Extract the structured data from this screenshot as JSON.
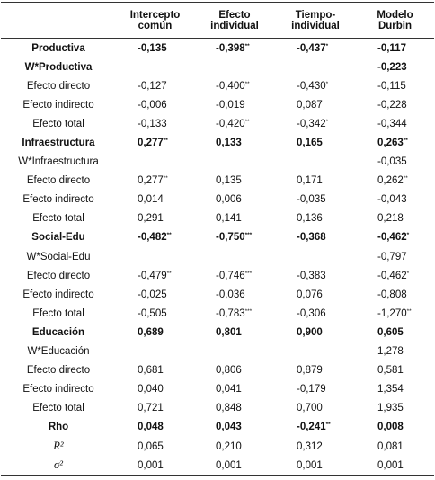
{
  "table": {
    "header": [
      [
        "Intercepto",
        "común"
      ],
      [
        "Efecto",
        "individual"
      ],
      [
        "Tiempo-",
        "individual"
      ],
      [
        "Modelo",
        "Durbin"
      ]
    ],
    "rows": [
      {
        "label": "Productiva",
        "bold": true,
        "cells": [
          "-0,135",
          {
            "text": "-0,398",
            "sup": "**"
          },
          {
            "text": "-0,437",
            "sup": "*"
          },
          "-0,117"
        ]
      },
      {
        "label": "W*Productiva",
        "bold": true,
        "cells": [
          null,
          null,
          null,
          "-0,223"
        ]
      },
      {
        "label": "Efecto directo",
        "cells": [
          "-0,127",
          {
            "text": "-0,400",
            "sup": "**"
          },
          {
            "text": "-0,430",
            "sup": "*"
          },
          "-0,115"
        ]
      },
      {
        "label": "Efecto indirecto",
        "cells": [
          "-0,006",
          "-0,019",
          "0,087",
          "-0,228"
        ]
      },
      {
        "label": "Efecto total",
        "cells": [
          "-0,133",
          {
            "text": "-0,420",
            "sup": "**"
          },
          {
            "text": "-0,342",
            "sup": "*"
          },
          "-0,344"
        ]
      },
      {
        "label": "Infraestructura",
        "bold": true,
        "cells": [
          {
            "text": "0,277",
            "sup": "**"
          },
          "0,133",
          "0,165",
          {
            "text": "0,263",
            "sup": "**"
          }
        ]
      },
      {
        "label": "W*Infraestructura",
        "cells": [
          null,
          null,
          null,
          "-0,035"
        ]
      },
      {
        "label": "Efecto directo",
        "cells": [
          {
            "text": "0,277",
            "sup": "**"
          },
          "0,135",
          "0,171",
          {
            "text": "0,262",
            "sup": "**"
          }
        ]
      },
      {
        "label": "Efecto indirecto",
        "cells": [
          "0,014",
          "0,006",
          "-0,035",
          "-0,043"
        ]
      },
      {
        "label": "Efecto total",
        "cells": [
          "0,291",
          "0,141",
          "0,136",
          "0,218"
        ]
      },
      {
        "label": "Social-Edu",
        "bold": true,
        "cells": [
          {
            "text": "-0,482",
            "sup": "**"
          },
          {
            "text": "-0,750",
            "sup": "***"
          },
          "-0,368",
          {
            "text": "-0,462",
            "sup": "*"
          }
        ]
      },
      {
        "label": "W*Social-Edu",
        "cells": [
          null,
          null,
          null,
          "-0,797"
        ]
      },
      {
        "label": "Efecto directo",
        "cells": [
          {
            "text": "-0,479",
            "sup": "**"
          },
          {
            "text": "-0,746",
            "sup": "***"
          },
          "-0,383",
          {
            "text": "-0,462",
            "sup": "*"
          }
        ]
      },
      {
        "label": "Efecto indirecto",
        "cells": [
          "-0,025",
          "-0,036",
          "0,076",
          "-0,808"
        ]
      },
      {
        "label": "Efecto total",
        "cells": [
          "-0,505",
          {
            "text": "-0,783",
            "sup": "***"
          },
          "-0,306",
          {
            "text": "-1,270",
            "sup": "**"
          }
        ]
      },
      {
        "label": "Educación",
        "bold": true,
        "cells": [
          "0,689",
          "0,801",
          "0,900",
          "0,605"
        ]
      },
      {
        "label": "W*Educación",
        "cells": [
          null,
          null,
          null,
          "1,278"
        ]
      },
      {
        "label": "Efecto directo",
        "cells": [
          "0,681",
          "0,806",
          "0,879",
          "0,581"
        ]
      },
      {
        "label": "Efecto indirecto",
        "cells": [
          "0,040",
          "0,041",
          "-0,179",
          "1,354"
        ]
      },
      {
        "label": "Efecto total",
        "cells": [
          "0,721",
          "0,848",
          "0,700",
          "1,935"
        ]
      },
      {
        "label": "Rho",
        "bold": true,
        "cells": [
          "0,048",
          "0,043",
          {
            "text": "-0,241",
            "sup": "**"
          },
          "0,008"
        ]
      },
      {
        "label": "R²",
        "math": true,
        "cells": [
          "0,065",
          "0,210",
          "0,312",
          "0,081"
        ]
      },
      {
        "label": "σ²",
        "math": true,
        "cells": [
          "0,001",
          "0,001",
          "0,001",
          "0,001"
        ]
      }
    ]
  }
}
